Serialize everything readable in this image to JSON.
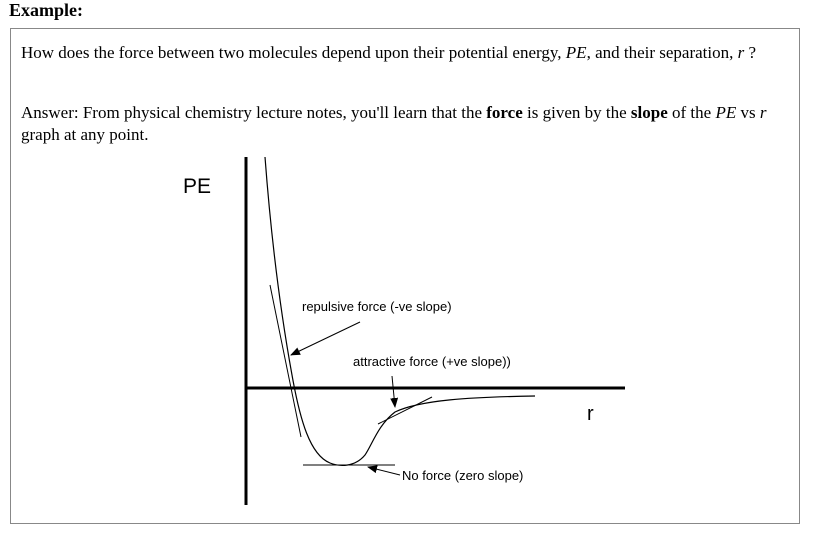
{
  "heading": "Example:",
  "question": [
    "How does the force between two molecules depend upon their potential energy, ",
    "PE",
    ", and their separation, ",
    "r",
    " ?"
  ],
  "answer": [
    "Answer: From physical chemistry lecture notes, you'll learn that the ",
    "force",
    " is given by the ",
    "slope",
    " of the ",
    "PE",
    " vs ",
    "r",
    " graph at any point."
  ],
  "diagram": {
    "y_label": "PE",
    "x_label": "r",
    "annotations": [
      "repulsive force (-ve slope)",
      "attractive force (+ve slope))",
      "No force (zero slope)"
    ]
  }
}
